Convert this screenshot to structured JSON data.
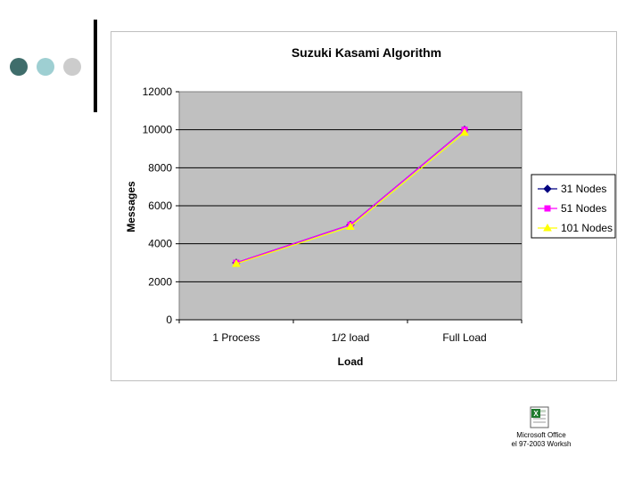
{
  "slide": {
    "embedded_object": {
      "icon": "excel-worksheet-icon",
      "label_line1": "Microsoft Office",
      "label_line2": "el 97-2003 Worksh"
    },
    "accent_colors": [
      "#3f6d6b",
      "#9ecfd2",
      "#cccccc"
    ]
  },
  "chart_data": {
    "type": "line",
    "title": "Suzuki Kasami Algorithm",
    "xlabel": "Load",
    "ylabel": "Messages",
    "categories": [
      "1 Process",
      "1/2 load",
      "Full Load"
    ],
    "ylim": [
      0,
      12000
    ],
    "yticks": [
      0,
      2000,
      4000,
      6000,
      8000,
      10000,
      12000
    ],
    "grid": true,
    "plot_background": "#c0c0c0",
    "legend_position": "right",
    "series": [
      {
        "name": "31 Nodes",
        "values": [
          3000,
          5000,
          10000
        ],
        "color": "#000080",
        "marker": "diamond"
      },
      {
        "name": "51 Nodes",
        "values": [
          3000,
          5000,
          10000
        ],
        "color": "#ff00ff",
        "marker": "square"
      },
      {
        "name": "101 Nodes",
        "values": [
          2950,
          4900,
          9850
        ],
        "color": "#ffff00",
        "marker": "triangle"
      }
    ]
  }
}
